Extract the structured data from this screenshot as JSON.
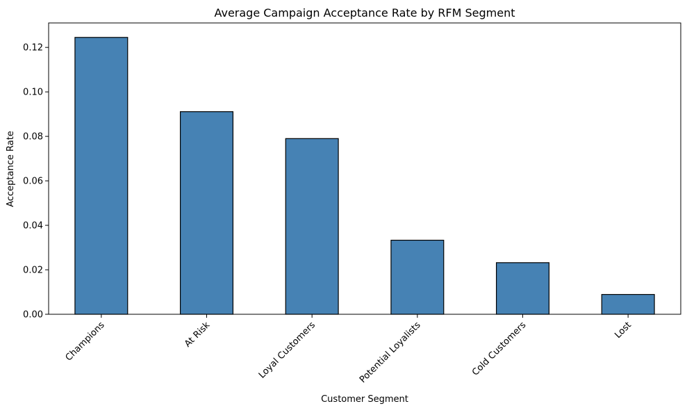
{
  "chart_data": {
    "type": "bar",
    "title": "Average Campaign Acceptance Rate by RFM Segment",
    "xlabel": "Customer Segment",
    "ylabel": "Acceptance Rate",
    "categories": [
      "Champions",
      "At Risk",
      "Loyal Customers",
      "Potential Loyalists",
      "Cold Customers",
      "Lost"
    ],
    "values": [
      0.1245,
      0.0911,
      0.079,
      0.0333,
      0.0232,
      0.0089
    ],
    "ylim": [
      0,
      0.131
    ],
    "yticks": [
      0.0,
      0.02,
      0.04,
      0.06,
      0.08,
      0.1,
      0.12
    ],
    "ytick_labels": [
      "0.00",
      "0.02",
      "0.04",
      "0.06",
      "0.08",
      "0.10",
      "0.12"
    ],
    "grid": false,
    "colors": {
      "bar_fill": "#4682b4",
      "bar_edge": "#000000"
    }
  }
}
